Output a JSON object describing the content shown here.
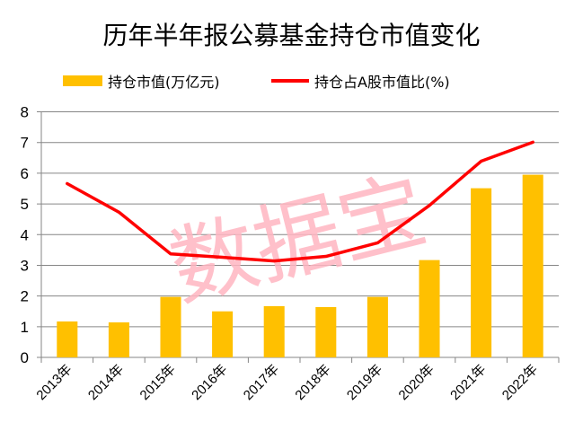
{
  "chart_data": {
    "type": "bar",
    "title": "历年半年报公募基金持仓市值变化",
    "categories": [
      "2013年",
      "2014年",
      "2015年",
      "2016年",
      "2017年",
      "2018年",
      "2019年",
      "2020年",
      "2021年",
      "2022年"
    ],
    "series": [
      {
        "name": "持仓市值(万亿元)",
        "type": "bar",
        "color": "#FFC000",
        "values": [
          1.17,
          1.14,
          1.97,
          1.5,
          1.67,
          1.64,
          1.97,
          3.17,
          5.51,
          5.95
        ]
      },
      {
        "name": "持仓占A股市值比(%)",
        "type": "line",
        "color": "#FF0000",
        "values": [
          5.66,
          4.73,
          3.37,
          3.26,
          3.14,
          3.29,
          3.73,
          4.95,
          6.39,
          7.01
        ]
      }
    ],
    "ylim": [
      0,
      8
    ],
    "yticks": [
      "0",
      "1",
      "2",
      "3",
      "4",
      "5",
      "6",
      "7",
      "8"
    ],
    "grid": true,
    "legend": "top",
    "watermark": "数据宝"
  }
}
